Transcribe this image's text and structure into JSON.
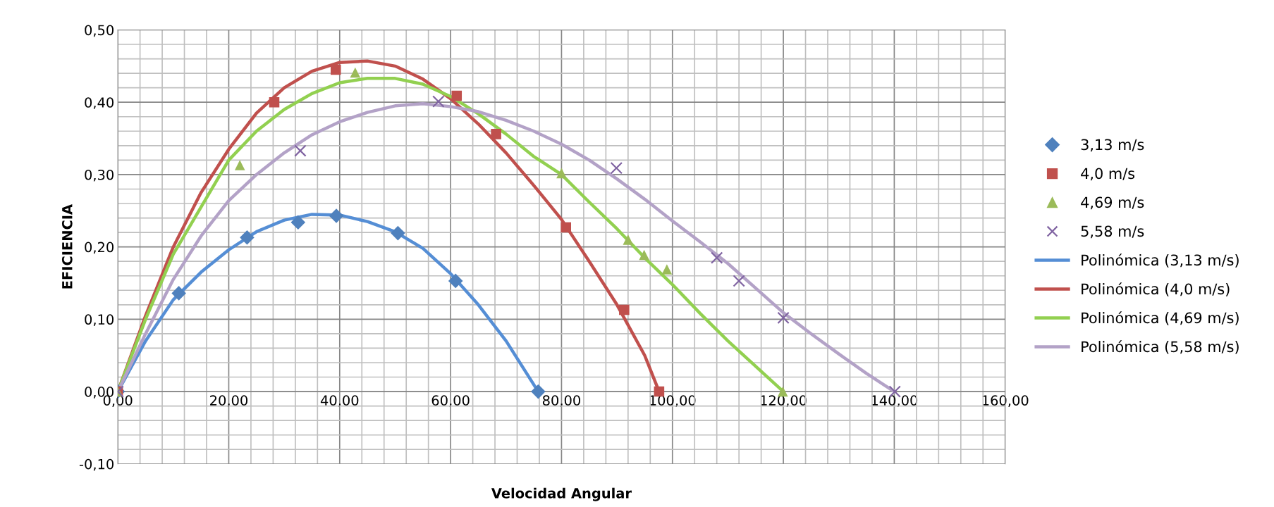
{
  "chart_data": {
    "type": "scatter",
    "xlabel": "Velocidad Angular",
    "ylabel": "EFICIENCIA",
    "xlim": [
      0,
      160
    ],
    "ylim": [
      -0.1,
      0.5
    ],
    "xticks": [
      {
        "value": 0,
        "label": "0,00"
      },
      {
        "value": 20,
        "label": "20,00"
      },
      {
        "value": 40,
        "label": "40,00"
      },
      {
        "value": 60,
        "label": "60,00"
      },
      {
        "value": 80,
        "label": "80,00"
      },
      {
        "value": 100,
        "label": "100,00"
      },
      {
        "value": 120,
        "label": "120,00"
      },
      {
        "value": 140,
        "label": "140,00"
      },
      {
        "value": 160,
        "label": "160,00"
      }
    ],
    "yticks": [
      {
        "value": -0.1,
        "label": "-0,10"
      },
      {
        "value": 0,
        "label": "0,00"
      },
      {
        "value": 0.1,
        "label": "0,10"
      },
      {
        "value": 0.2,
        "label": "0,20"
      },
      {
        "value": 0.3,
        "label": "0,30"
      },
      {
        "value": 0.4,
        "label": "0,40"
      },
      {
        "value": 0.5,
        "label": "0,50"
      }
    ],
    "grid": true,
    "legend": "right",
    "series": [
      {
        "name": "3,13 m/s",
        "marker": "diamond",
        "color": "#4f81bd",
        "x": [
          0,
          11.0,
          23.3,
          32.5,
          39.4,
          50.5,
          60.9,
          75.8
        ],
        "values": [
          0,
          0.136,
          0.213,
          0.234,
          0.243,
          0.219,
          0.153,
          0
        ]
      },
      {
        "name": "4,0 m/s",
        "marker": "square",
        "color": "#c0504d",
        "x": [
          0,
          28.2,
          39.3,
          61.1,
          68.2,
          80.8,
          91.3,
          97.6
        ],
        "values": [
          0,
          0.4,
          0.445,
          0.409,
          0.356,
          0.227,
          0.113,
          0
        ]
      },
      {
        "name": "4,69 m/s",
        "marker": "triangle",
        "color": "#9bbb59",
        "x": [
          0,
          22.0,
          42.8,
          80.0,
          92.0,
          94.9,
          99.0,
          119.9
        ],
        "values": [
          0,
          0.313,
          0.441,
          0.302,
          0.21,
          0.189,
          0.169,
          0
        ]
      },
      {
        "name": "5,58 m/s",
        "marker": "cross",
        "color": "#8064a2",
        "x": [
          0,
          32.9,
          57.8,
          89.9,
          108.0,
          112.0,
          120.0,
          140.1
        ],
        "values": [
          0,
          0.333,
          0.401,
          0.309,
          0.185,
          0.153,
          0.102,
          0
        ]
      },
      {
        "name": "Polinómica (3,13 m/s)",
        "type": "line",
        "color": "#558ed5",
        "x": [
          0,
          5,
          10,
          15,
          20,
          25,
          30,
          35,
          40,
          45,
          50,
          55,
          60,
          65,
          70,
          75.8
        ],
        "values": [
          0,
          0.07,
          0.127,
          0.165,
          0.196,
          0.221,
          0.237,
          0.245,
          0.244,
          0.235,
          0.221,
          0.198,
          0.163,
          0.12,
          0.07,
          0
        ]
      },
      {
        "name": "Polinómica (4,0 m/s)",
        "type": "line",
        "color": "#c0504d",
        "x": [
          0,
          5,
          10,
          15,
          20,
          25,
          30,
          35,
          40,
          45,
          50,
          55,
          60,
          65,
          70,
          75,
          80,
          85,
          90,
          95,
          97.6
        ],
        "values": [
          0,
          0.105,
          0.2,
          0.275,
          0.335,
          0.385,
          0.42,
          0.443,
          0.455,
          0.457,
          0.45,
          0.432,
          0.405,
          0.37,
          0.33,
          0.285,
          0.238,
          0.18,
          0.12,
          0.05,
          0
        ]
      },
      {
        "name": "Polinómica (4,69 m/s)",
        "type": "line",
        "color": "#92d050",
        "x": [
          0,
          5,
          10,
          15,
          20,
          25,
          30,
          35,
          40,
          45,
          50,
          55,
          60,
          65,
          70,
          75,
          80,
          85,
          90,
          95,
          100,
          105,
          110,
          115,
          120
        ],
        "values": [
          0,
          0.1,
          0.19,
          0.255,
          0.32,
          0.36,
          0.39,
          0.412,
          0.427,
          0.433,
          0.433,
          0.425,
          0.408,
          0.384,
          0.356,
          0.325,
          0.3,
          0.262,
          0.225,
          0.185,
          0.148,
          0.108,
          0.07,
          0.035,
          0
        ]
      },
      {
        "name": "Polinómica (5,58 m/s)",
        "type": "line",
        "color": "#b3a2c7",
        "x": [
          0,
          5,
          10,
          15,
          20,
          25,
          30,
          35,
          40,
          45,
          50,
          55,
          60,
          65,
          70,
          75,
          80,
          85,
          90,
          95,
          100,
          105,
          110,
          115,
          120,
          125,
          130,
          135,
          140
        ],
        "values": [
          0,
          0.08,
          0.155,
          0.215,
          0.264,
          0.3,
          0.33,
          0.355,
          0.373,
          0.386,
          0.395,
          0.398,
          0.394,
          0.387,
          0.375,
          0.36,
          0.342,
          0.32,
          0.294,
          0.266,
          0.236,
          0.207,
          0.177,
          0.143,
          0.109,
          0.08,
          0.052,
          0.025,
          0
        ]
      }
    ]
  }
}
